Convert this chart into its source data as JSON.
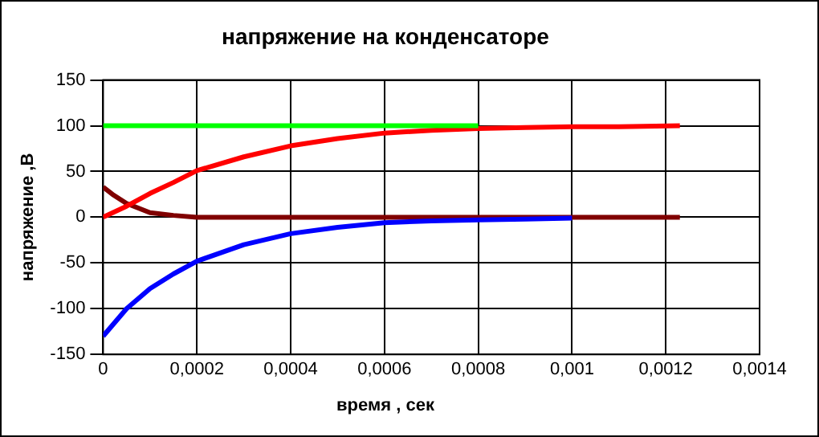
{
  "chart_data": {
    "type": "line",
    "title": "напряжение на конденсаторе",
    "xlabel": "время , сек",
    "ylabel": "напряжение ,В",
    "xlim": [
      0,
      0.0014
    ],
    "ylim": [
      -150,
      150
    ],
    "xticks": [
      0,
      {
        "value": 0.0002,
        "label": "0,0002"
      },
      {
        "value": 0.0004,
        "label": "0,0004"
      },
      {
        "value": 0.0006,
        "label": "0,0006"
      },
      {
        "value": 0.0008,
        "label": "0,0008"
      },
      {
        "value": 0.001,
        "label": "0,001"
      },
      {
        "value": 0.0012,
        "label": "0,0012"
      },
      {
        "value": 0.0014,
        "label": "0,0014"
      }
    ],
    "yticks": [
      -150,
      -100,
      -50,
      0,
      50,
      100,
      150
    ],
    "grid": true,
    "legend": false,
    "marker": "none",
    "line_style": "solid",
    "series": [
      {
        "color": "#00ff00",
        "x": [
          0,
          0.0008
        ],
        "values": [
          100,
          100
        ]
      },
      {
        "color": "#ff0000",
        "x": [
          0,
          5e-05,
          0.0001,
          0.00015,
          0.0002,
          0.0003,
          0.0004,
          0.0005,
          0.0006,
          0.0007,
          0.0008,
          0.0009,
          0.001,
          0.0011,
          0.00123
        ],
        "values": [
          0,
          12,
          26,
          38,
          51,
          66,
          78,
          86,
          92,
          95,
          97,
          98,
          99,
          99,
          100
        ]
      },
      {
        "color": "#0000ff",
        "x": [
          0,
          5e-05,
          0.0001,
          0.00015,
          0.0002,
          0.0003,
          0.0004,
          0.0005,
          0.0006,
          0.0007,
          0.0008,
          0.0009,
          0.001
        ],
        "values": [
          -130,
          -100,
          -78,
          -62,
          -48,
          -30,
          -18,
          -11,
          -6,
          -4,
          -3,
          -2,
          -1
        ]
      },
      {
        "color": "#800000",
        "x": [
          0,
          2e-05,
          5e-05,
          0.0001,
          0.00015,
          0.0002,
          0.0004,
          0.0008,
          0.00123
        ],
        "values": [
          33,
          25,
          15,
          5,
          2,
          0,
          0,
          0,
          0
        ]
      }
    ]
  }
}
